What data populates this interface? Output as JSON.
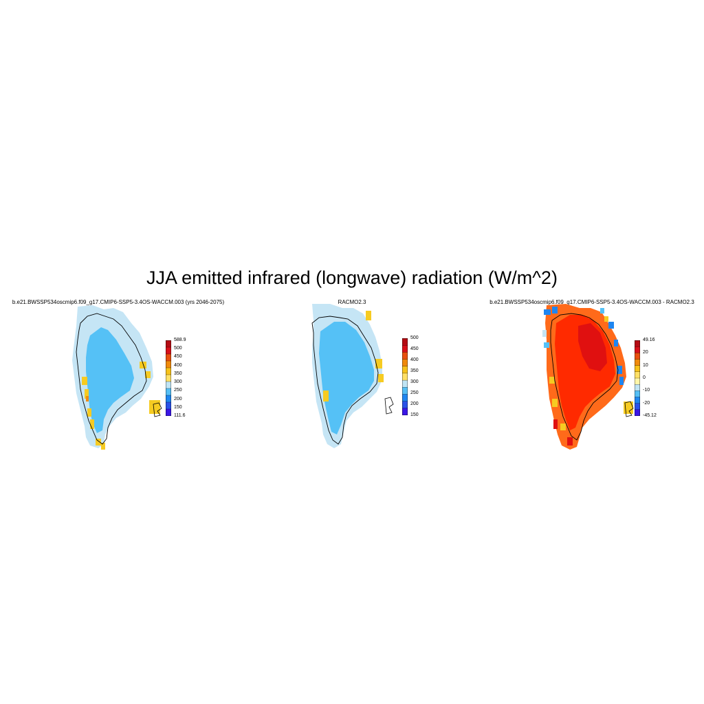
{
  "title": "JJA emitted infrared (longwave) radiation (W/m^2)",
  "panels": [
    {
      "title": "b.e21.BWSSP534oscmip6.f09_g17.CMIP6-SSP5-3.4OS-WACCM.003 (yrs 2046-2075)",
      "colorbar": {
        "colors": [
          "#3a16e6",
          "#2a52e8",
          "#1f86f0",
          "#55bff5",
          "#c0e4f4",
          "#ffe066",
          "#f7c21a",
          "#f08a0c",
          "#e8500e",
          "#d8101a",
          "#b50c14"
        ],
        "labels": [
          "588.9",
          "500",
          "450",
          "400",
          "350",
          "300",
          "250",
          "200",
          "150",
          "111.6"
        ]
      },
      "fill_colors": {
        "inner": "#55c1f6",
        "outer": "#c5e5f5",
        "warm": "#f6cb22",
        "hot": "#f08c10"
      }
    },
    {
      "title": "RACMO2.3",
      "colorbar": {
        "colors": [
          "#3a16e6",
          "#2a52e8",
          "#1f86f0",
          "#55bff5",
          "#c0e4f4",
          "#ffe066",
          "#f7c21a",
          "#f08a0c",
          "#e8500e",
          "#d8101a",
          "#b50c14"
        ],
        "labels": [
          "500",
          "450",
          "400",
          "350",
          "300",
          "250",
          "200",
          "150"
        ]
      },
      "fill_colors": {
        "inner": "#55c1f6",
        "outer": "#c5e5f5",
        "warm": "#f6cb22",
        "hot": "#f08c10"
      }
    },
    {
      "title": "b.e21.BWSSP534oscmip6.f09_g17.CMIP6-SSP5-3.4OS-WACCM.003 - RACMO2.3",
      "colorbar": {
        "colors": [
          "#3a16e6",
          "#2a52e8",
          "#1f86f0",
          "#55bff5",
          "#c0e4f4",
          "#fff6a8",
          "#ffe066",
          "#f7c21a",
          "#f08a0c",
          "#e8500e",
          "#d8101a",
          "#b50c14"
        ],
        "labels": [
          "49.16",
          "20",
          "10",
          "0",
          "-10",
          "-20",
          "-45.12"
        ]
      },
      "fill_colors": {
        "inner": "#ff2a00",
        "core": "#e01010",
        "outer": "#ff6a1a",
        "cold": "#1f86f0",
        "warm": "#f6cb22"
      }
    }
  ]
}
